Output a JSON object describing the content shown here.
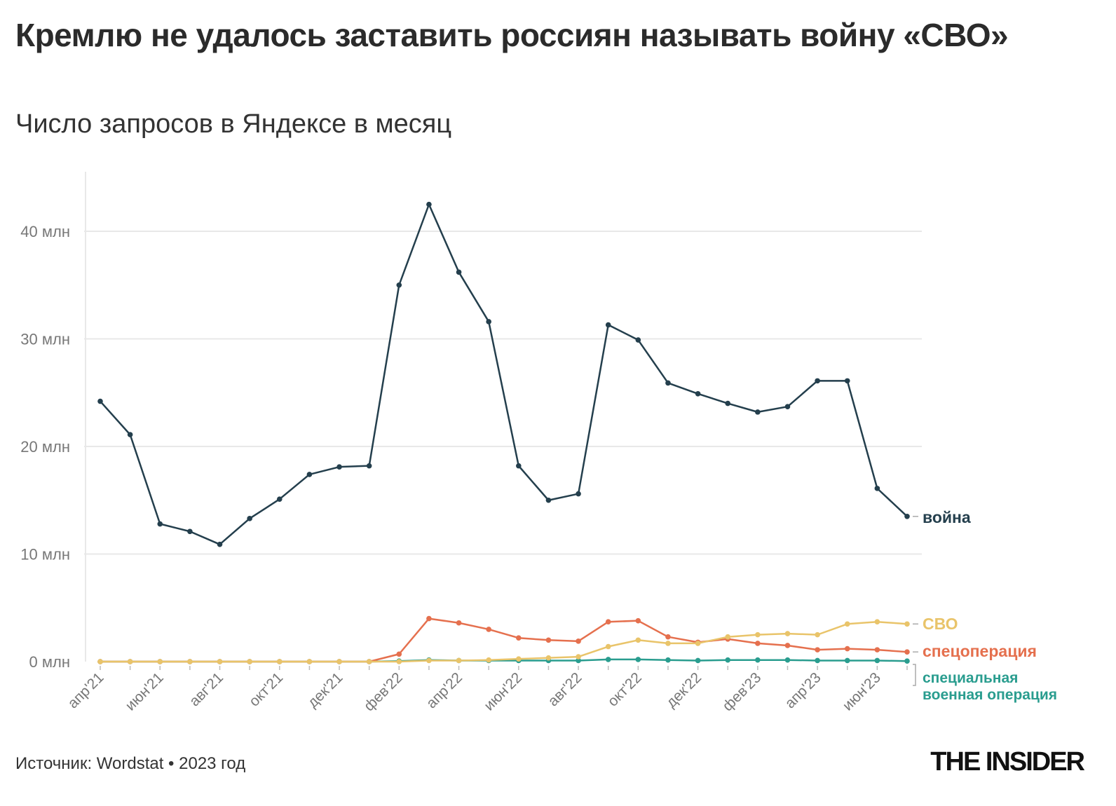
{
  "title": "Кремлю не удалось заставить россиян называть войну «СВО»",
  "subtitle": "Число запросов в Яндексе в месяц",
  "source": "Источник: Wordstat • 2023 год",
  "logo": "THE INSIDER",
  "chart_data": {
    "type": "line",
    "ylim": [
      0,
      45
    ],
    "yticks": [
      0,
      10,
      20,
      30,
      40
    ],
    "ytick_labels": [
      "0 млн",
      "10 млн",
      "20 млн",
      "30 млн",
      "40 млн"
    ],
    "grid": true,
    "legend_placement": "right-end-labels",
    "x": [
      "апр'21",
      "май'21",
      "июн'21",
      "июл'21",
      "авг'21",
      "сен'21",
      "окт'21",
      "ноя'21",
      "дек'21",
      "янв'22",
      "фев'22",
      "мар'22",
      "апр'22",
      "май'22",
      "июн'22",
      "июл'22",
      "авг'22",
      "сен'22",
      "окт'22",
      "ноя'22",
      "дек'22",
      "янв'23",
      "фев'23",
      "мар'23",
      "апр'23",
      "май'23",
      "июн'23",
      "июл'23"
    ],
    "xtick_labels": [
      "апр'21",
      "июн'21",
      "авг'21",
      "окт'21",
      "дек'21",
      "фев'22",
      "апр'22",
      "июн'22",
      "авг'22",
      "окт'22",
      "дек'22",
      "фев'23",
      "апр'23",
      "июн'23"
    ],
    "series": [
      {
        "name": "война",
        "color": "#243f4d",
        "values": [
          24.2,
          21.1,
          12.8,
          12.1,
          10.9,
          13.3,
          15.1,
          17.4,
          18.1,
          18.2,
          35.0,
          42.5,
          36.2,
          31.6,
          18.2,
          15.0,
          15.6,
          31.3,
          29.9,
          25.9,
          24.9,
          24.0,
          23.2,
          23.7,
          26.1,
          26.1,
          16.1,
          13.5
        ]
      },
      {
        "name": "СВО",
        "color": "#e9c46a",
        "values": [
          0,
          0,
          0,
          0,
          0,
          0,
          0,
          0,
          0,
          0,
          0,
          0.1,
          0.1,
          0.15,
          0.25,
          0.35,
          0.45,
          1.4,
          2.0,
          1.7,
          1.7,
          2.3,
          2.5,
          2.6,
          2.5,
          3.5,
          3.7,
          3.5
        ]
      },
      {
        "name": "спецоперация",
        "color": "#e5704e",
        "values": [
          0,
          0,
          0,
          0,
          0,
          0,
          0,
          0,
          0,
          0,
          0.7,
          4.0,
          3.6,
          3.0,
          2.2,
          2.0,
          1.9,
          3.7,
          3.8,
          2.3,
          1.8,
          2.1,
          1.7,
          1.5,
          1.1,
          1.2,
          1.1,
          0.9
        ]
      },
      {
        "name": "специальная военная операция",
        "color": "#2a9d8f",
        "values": [
          0,
          0,
          0,
          0,
          0,
          0,
          0,
          0,
          0,
          0,
          0.05,
          0.15,
          0.1,
          0.1,
          0.1,
          0.1,
          0.1,
          0.2,
          0.2,
          0.15,
          0.1,
          0.15,
          0.15,
          0.15,
          0.1,
          0.1,
          0.1,
          0.05
        ]
      }
    ]
  }
}
